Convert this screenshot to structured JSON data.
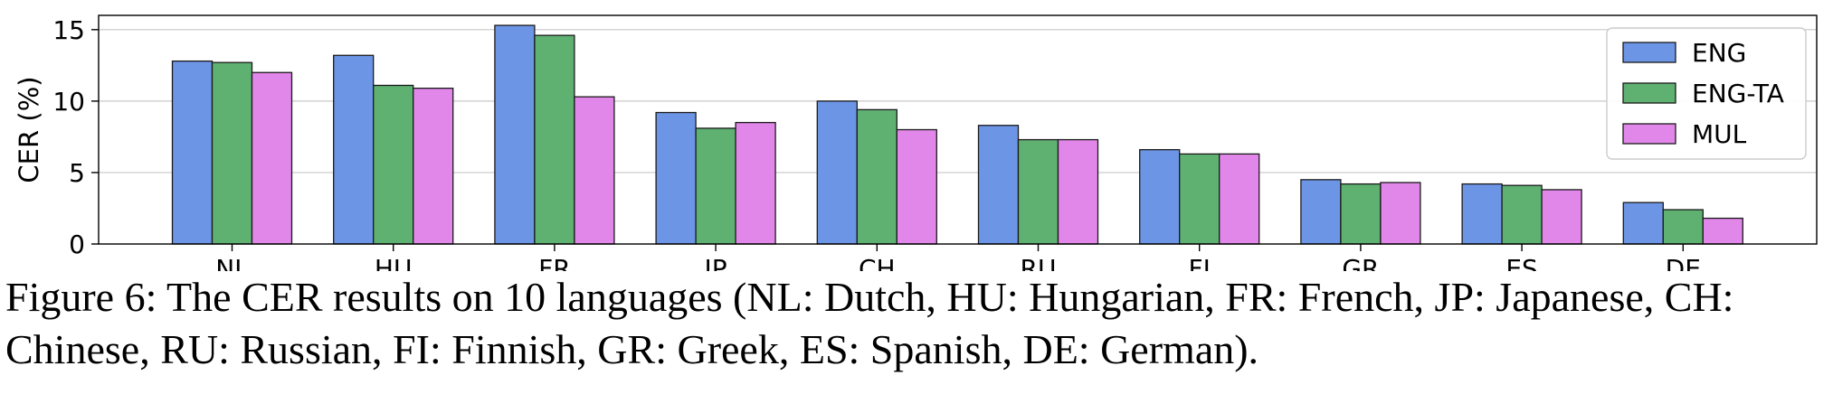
{
  "chart_data": {
    "type": "bar",
    "title": "",
    "xlabel": "",
    "ylabel": "CER (%)",
    "ylim": [
      0,
      16
    ],
    "yticks": [
      0,
      5,
      10,
      15
    ],
    "grid": "horizontal",
    "legend_position": "top-right",
    "categories": [
      "NL",
      "HU",
      "FR",
      "JP",
      "CH",
      "RU",
      "FI",
      "GR",
      "ES",
      "DE"
    ],
    "series": [
      {
        "name": "ENG",
        "color": "#6d95e6",
        "values": [
          12.8,
          13.2,
          15.3,
          9.2,
          10.0,
          8.3,
          6.6,
          4.5,
          4.2,
          2.9
        ]
      },
      {
        "name": "ENG-TA",
        "color": "#5fb172",
        "values": [
          12.7,
          11.1,
          14.6,
          8.1,
          9.4,
          7.3,
          6.3,
          4.2,
          4.1,
          2.4
        ]
      },
      {
        "name": "MUL",
        "color": "#e187e9",
        "values": [
          12.0,
          10.9,
          10.3,
          8.5,
          8.0,
          7.3,
          6.3,
          4.3,
          3.8,
          1.8
        ]
      }
    ]
  },
  "caption": {
    "text": "Figure 6: The CER results on 10 languages (NL: Dutch, HU: Hungarian, FR: French, JP: Japanese, CH: Chinese, RU: Russian, FI: Finnish, GR: Greek, ES: Spanish, DE: German)."
  }
}
